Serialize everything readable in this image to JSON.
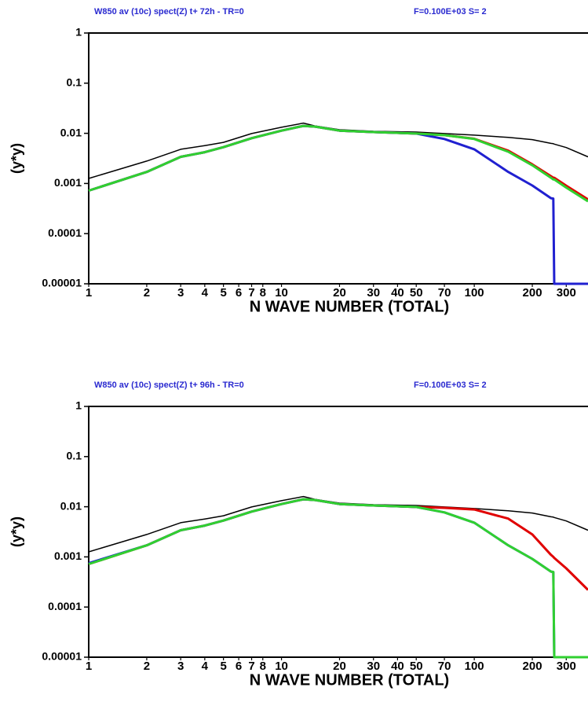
{
  "chart_data": [
    {
      "type": "line",
      "title": "W850 av (10c) spect(Z) t+ 72h - TR=0",
      "subtitle": "F=0.100E+03 S= 2",
      "x_label": "N WAVE NUMBER (TOTAL)",
      "y_label": "(y*y)",
      "log_x": true,
      "log_y": true,
      "xlim": [
        1,
        389
      ],
      "ylim": [
        1e-05,
        1
      ],
      "xticks": [
        1,
        2,
        3,
        4,
        5,
        6,
        7,
        8,
        10,
        20,
        30,
        40,
        50,
        70,
        100,
        200,
        300
      ],
      "yticks": [
        1,
        0.1,
        0.01,
        0.001,
        0.0001,
        1e-05
      ],
      "x": [
        1,
        2,
        3,
        4,
        5,
        7,
        10,
        13,
        15,
        20,
        30,
        50,
        70,
        100,
        150,
        200,
        250,
        257,
        260,
        300,
        389
      ],
      "series": [
        {
          "color": "#000000",
          "values": [
            0.00126,
            0.0028,
            0.0048,
            0.0057,
            0.0066,
            0.0099,
            0.0132,
            0.016,
            0.014,
            0.0118,
            0.011,
            0.0106,
            0.0099,
            0.0092,
            0.0083,
            0.0075,
            0.0063,
            0.0062,
            0.0061,
            0.0052,
            0.0034
          ]
        },
        {
          "color": "#e00000",
          "values": [
            0.00072,
            0.0017,
            0.0034,
            0.0042,
            0.0053,
            0.008,
            0.0113,
            0.0141,
            0.0136,
            0.0113,
            0.0106,
            0.0099,
            0.0092,
            0.0078,
            0.0045,
            0.0024,
            0.0014,
            0.0013,
            0.0013,
            0.0009,
            0.00048
          ]
        },
        {
          "color": "#2020d0",
          "values": [
            0.00072,
            0.0017,
            0.0034,
            0.0042,
            0.0053,
            0.008,
            0.0113,
            0.0141,
            0.0136,
            0.0113,
            0.0106,
            0.0099,
            0.0077,
            0.0048,
            0.0017,
            0.00091,
            0.00051,
            0.0005,
            1e-05,
            1e-05,
            1e-05
          ]
        },
        {
          "color": "#30d030",
          "values": [
            0.00072,
            0.0017,
            0.0034,
            0.0042,
            0.0053,
            0.008,
            0.0113,
            0.0141,
            0.0136,
            0.0113,
            0.0106,
            0.0099,
            0.0092,
            0.0077,
            0.0043,
            0.0023,
            0.0013,
            0.0012,
            0.0012,
            0.00083,
            0.00044
          ]
        }
      ]
    },
    {
      "type": "line",
      "title": "W850 av (10c) spect(Z) t+ 96h - TR=0",
      "subtitle": "F=0.100E+03 S= 2",
      "x_label": "N WAVE NUMBER (TOTAL)",
      "y_label": "(y*y)",
      "log_x": true,
      "log_y": true,
      "xlim": [
        1,
        389
      ],
      "ylim": [
        1e-05,
        1
      ],
      "xticks": [
        1,
        2,
        3,
        4,
        5,
        6,
        7,
        8,
        10,
        20,
        30,
        40,
        50,
        70,
        100,
        200,
        300
      ],
      "yticks": [
        1,
        0.1,
        0.01,
        0.001,
        0.0001,
        1e-05
      ],
      "x": [
        1,
        2,
        3,
        4,
        5,
        7,
        10,
        13,
        15,
        20,
        30,
        50,
        70,
        100,
        150,
        200,
        250,
        257,
        260,
        300,
        389
      ],
      "series": [
        {
          "color": "#000000",
          "values": [
            0.00126,
            0.0028,
            0.0048,
            0.0057,
            0.0066,
            0.0099,
            0.0132,
            0.016,
            0.014,
            0.0118,
            0.011,
            0.0106,
            0.0099,
            0.0092,
            0.0083,
            0.0075,
            0.0063,
            0.0062,
            0.0061,
            0.0052,
            0.0034
          ]
        },
        {
          "color": "#e00000",
          "values": [
            0.00072,
            0.0017,
            0.0034,
            0.0042,
            0.0053,
            0.008,
            0.0113,
            0.0141,
            0.0136,
            0.0113,
            0.0106,
            0.0099,
            0.0095,
            0.0088,
            0.0058,
            0.0028,
            0.0011,
            0.001,
            0.00095,
            0.00059,
            0.00022
          ]
        },
        {
          "color": "#2020d0",
          "values": [
            0.00075,
            0.0017,
            0.0034,
            0.0042,
            0.0053,
            0.008,
            0.0113,
            0.0141,
            0.0136,
            0.0113,
            0.0106,
            0.0099,
            0.0077,
            0.0048,
            0.0017,
            0.00091,
            0.00051,
            0.0005,
            1e-05,
            1e-05,
            1e-05
          ]
        },
        {
          "color": "#30d030",
          "values": [
            0.00072,
            0.0017,
            0.0034,
            0.0042,
            0.0053,
            0.008,
            0.0113,
            0.0141,
            0.0136,
            0.0113,
            0.0106,
            0.0099,
            0.0077,
            0.0048,
            0.0017,
            0.00091,
            0.00051,
            0.0005,
            1e-05,
            1e-05,
            1e-05
          ]
        }
      ]
    }
  ]
}
